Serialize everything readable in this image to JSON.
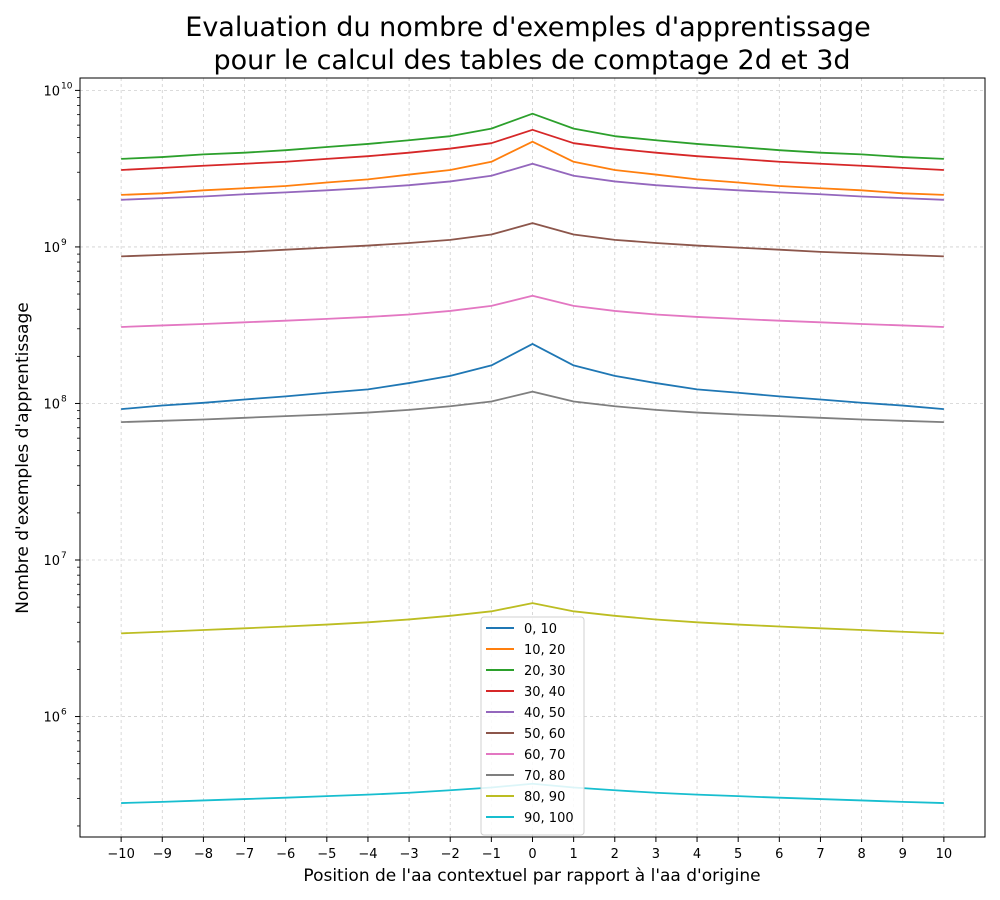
{
  "chart_data": {
    "type": "line",
    "title_lines": [
      "Evaluation du nombre d'exemples d'apprentissage",
      "pour le calcul des tables de comptage 2d et 3d"
    ],
    "xlabel": "Position de l'aa contextuel par rapport à l'aa d'origine",
    "ylabel": "Nombre d'exemples d'apprentissage",
    "y_scale": "log",
    "grid": true,
    "legend_position": "lower-center",
    "xlim": [
      -11,
      11
    ],
    "ylim": [
      170000,
      12000000000
    ],
    "x": [
      -10,
      -9,
      -8,
      -7,
      -6,
      -5,
      -4,
      -3,
      -2,
      -1,
      0,
      1,
      2,
      3,
      4,
      5,
      6,
      7,
      8,
      9,
      10
    ],
    "x_tick_labels": [
      "−10",
      "−9",
      "−8",
      "−7",
      "−6",
      "−5",
      "−4",
      "−3",
      "−2",
      "−1",
      "0",
      "1",
      "2",
      "3",
      "4",
      "5",
      "6",
      "7",
      "8",
      "9",
      "10"
    ],
    "y_ticks": [
      {
        "value": 1000000,
        "base": "10",
        "exp": "6"
      },
      {
        "value": 10000000,
        "base": "10",
        "exp": "7"
      },
      {
        "value": 100000000,
        "base": "10",
        "exp": "8"
      },
      {
        "value": 1000000000,
        "base": "10",
        "exp": "9"
      },
      {
        "value": 10000000000,
        "base": "10",
        "exp": "10"
      }
    ],
    "series": [
      {
        "name": "0, 10",
        "color": "#1f77b4",
        "values": [
          92000000,
          97000000,
          101000000,
          106000000,
          111000000,
          117000000,
          123000000,
          135000000,
          150000000,
          175000000,
          240000000,
          175000000,
          150000000,
          135000000,
          123000000,
          117000000,
          111000000,
          106000000,
          101000000,
          97000000,
          92000000
        ]
      },
      {
        "name": "10, 20",
        "color": "#ff7f0e",
        "values": [
          2150000000,
          2200000000,
          2300000000,
          2370000000,
          2450000000,
          2580000000,
          2700000000,
          2900000000,
          3100000000,
          3500000000,
          4700000000,
          3500000000,
          3100000000,
          2900000000,
          2700000000,
          2580000000,
          2450000000,
          2370000000,
          2300000000,
          2200000000,
          2150000000
        ]
      },
      {
        "name": "20, 30",
        "color": "#2ca02c",
        "values": [
          3650000000,
          3750000000,
          3900000000,
          4000000000,
          4150000000,
          4350000000,
          4550000000,
          4800000000,
          5100000000,
          5700000000,
          7100000000,
          5700000000,
          5100000000,
          4800000000,
          4550000000,
          4350000000,
          4150000000,
          4000000000,
          3900000000,
          3750000000,
          3650000000
        ]
      },
      {
        "name": "30, 40",
        "color": "#d62728",
        "values": [
          3100000000,
          3200000000,
          3300000000,
          3400000000,
          3500000000,
          3650000000,
          3800000000,
          4000000000,
          4250000000,
          4600000000,
          5600000000,
          4600000000,
          4250000000,
          4000000000,
          3800000000,
          3650000000,
          3500000000,
          3400000000,
          3300000000,
          3200000000,
          3100000000
        ]
      },
      {
        "name": "40, 50",
        "color": "#9467bd",
        "values": [
          2000000000,
          2050000000,
          2100000000,
          2170000000,
          2230000000,
          2300000000,
          2380000000,
          2480000000,
          2620000000,
          2850000000,
          3400000000,
          2850000000,
          2620000000,
          2480000000,
          2380000000,
          2300000000,
          2230000000,
          2170000000,
          2100000000,
          2050000000,
          2000000000
        ]
      },
      {
        "name": "50, 60",
        "color": "#8c564b",
        "values": [
          870000000,
          890000000,
          910000000,
          930000000,
          960000000,
          990000000,
          1020000000,
          1060000000,
          1110000000,
          1200000000,
          1420000000,
          1200000000,
          1110000000,
          1060000000,
          1020000000,
          990000000,
          960000000,
          930000000,
          910000000,
          890000000,
          870000000
        ]
      },
      {
        "name": "60, 70",
        "color": "#e377c2",
        "values": [
          308000000,
          315000000,
          322000000,
          330000000,
          338000000,
          347000000,
          357000000,
          370000000,
          390000000,
          420000000,
          488000000,
          420000000,
          390000000,
          370000000,
          357000000,
          347000000,
          338000000,
          330000000,
          322000000,
          315000000,
          308000000
        ]
      },
      {
        "name": "70, 80",
        "color": "#7f7f7f",
        "values": [
          76000000,
          77500000,
          79000000,
          81000000,
          83000000,
          85000000,
          87500000,
          91000000,
          96000000,
          103000000,
          119000000,
          103000000,
          96000000,
          91000000,
          87500000,
          85000000,
          83000000,
          81000000,
          79000000,
          77500000,
          76000000
        ]
      },
      {
        "name": "80, 90",
        "color": "#bcbd22",
        "values": [
          3400000,
          3480000,
          3570000,
          3660000,
          3760000,
          3870000,
          4000000,
          4170000,
          4400000,
          4700000,
          5300000,
          4700000,
          4400000,
          4170000,
          4000000,
          3870000,
          3760000,
          3660000,
          3570000,
          3480000,
          3400000
        ]
      },
      {
        "name": "90, 100",
        "color": "#17becf",
        "values": [
          280000,
          285000,
          291000,
          297000,
          303000,
          310000,
          317000,
          326000,
          338000,
          352000,
          372000,
          352000,
          338000,
          326000,
          317000,
          310000,
          303000,
          297000,
          291000,
          285000,
          280000
        ]
      }
    ]
  }
}
